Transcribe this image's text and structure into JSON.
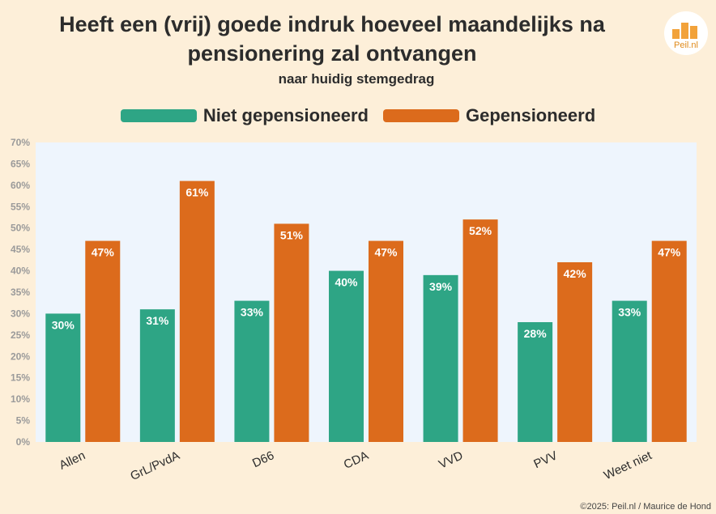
{
  "header": {
    "title_line1": "Heeft een (vrij) goede indruk hoeveel maandelijks na",
    "title_line2": "pensionering zal ontvangen",
    "subtitle": "naar huidig stemgedrag"
  },
  "logo": {
    "text": "Peil.nl"
  },
  "footer": {
    "copyright": "©2025: Peil.nl / Maurice de Hond"
  },
  "colors": {
    "series1": "#2ea585",
    "series2": "#dc6b1c",
    "plot_bg": "#eef5fd",
    "background": "#fdefd9"
  },
  "chart_data": {
    "type": "bar",
    "title": "Heeft een (vrij) goede indruk hoeveel maandelijks na pensionering zal ontvangen",
    "subtitle": "naar huidig stemgedrag",
    "xlabel": "",
    "ylabel": "",
    "ylim": [
      0,
      70
    ],
    "yticks": [
      0,
      5,
      10,
      15,
      20,
      25,
      30,
      35,
      40,
      45,
      50,
      55,
      60,
      65,
      70
    ],
    "ytick_suffix": "%",
    "legend_position": "top-center",
    "categories": [
      "Allen",
      "GrL/PvdA",
      "D66",
      "CDA",
      "VVD",
      "PVV",
      "Weet niet"
    ],
    "series": [
      {
        "name": "Niet gepensioneerd",
        "values": [
          30,
          31,
          33,
          40,
          39,
          28,
          33
        ]
      },
      {
        "name": "Gepensioneerd",
        "values": [
          47,
          61,
          51,
          47,
          52,
          42,
          47
        ]
      }
    ]
  }
}
